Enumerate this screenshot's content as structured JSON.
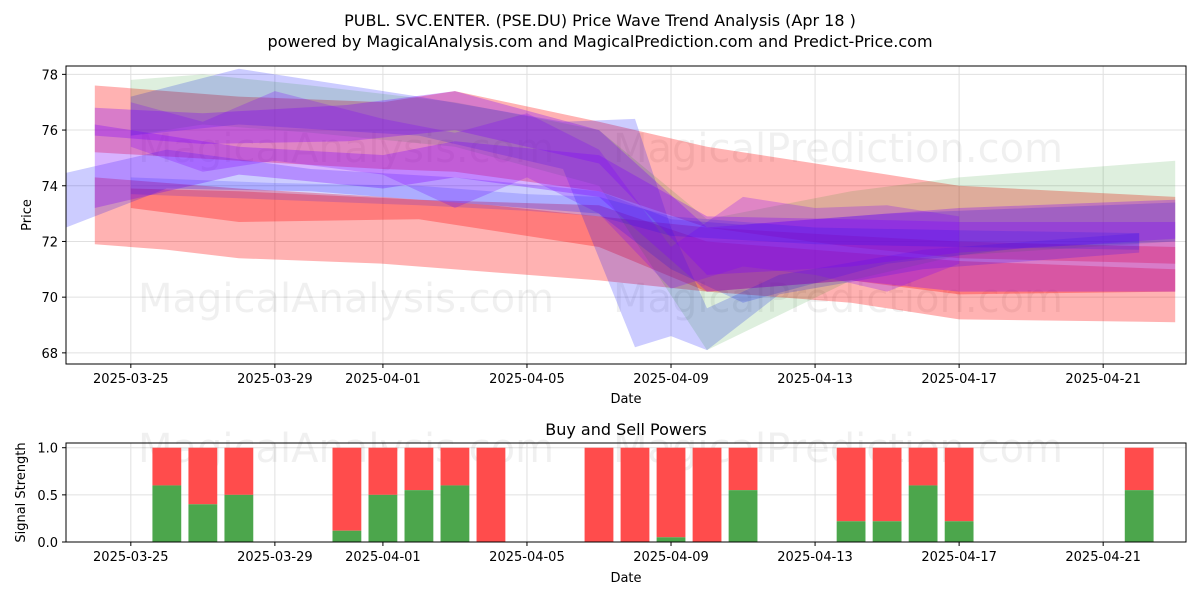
{
  "title_line1": "PUBL. SVC.ENTER. (PSE.DU) Price Wave Trend Analysis (Apr 18 )",
  "title_line2": "powered by MagicalAnalysis.com and MagicalPrediction.com and Predict-Price.com",
  "watermarks": [
    "MagicalAnalysis.com",
    "MagicalPrediction.com"
  ],
  "chart_data": [
    {
      "type": "area",
      "title": "",
      "xlabel": "Date",
      "ylabel": "Price",
      "ylim": [
        67.6,
        78.3
      ],
      "xlim": [
        "2025-03-23.2",
        "2025-04-23.3"
      ],
      "x_ticks": [
        "2025-03-25",
        "2025-03-29",
        "2025-04-01",
        "2025-04-05",
        "2025-04-09",
        "2025-04-13",
        "2025-04-17",
        "2025-04-21"
      ],
      "y_ticks": [
        68,
        70,
        72,
        74,
        76,
        78
      ],
      "grid": true,
      "series": [
        {
          "color": "#ff0000",
          "opacity": 0.3,
          "x": [
            "2025-03-24",
            "2025-03-26",
            "2025-03-28",
            "2025-04-01",
            "2025-04-04",
            "2025-04-07",
            "2025-04-10",
            "2025-04-14",
            "2025-04-17",
            "2025-04-23"
          ],
          "upper": [
            74.3,
            74.1,
            73.9,
            73.6,
            73.3,
            72.9,
            72.5,
            72.2,
            72.0,
            71.8
          ],
          "lower": [
            71.9,
            71.7,
            71.4,
            71.2,
            70.9,
            70.6,
            70.2,
            69.8,
            69.2,
            69.1
          ]
        },
        {
          "color": "#ff0000",
          "opacity": 0.3,
          "x": [
            "2025-03-24",
            "2025-03-28",
            "2025-04-01",
            "2025-04-03",
            "2025-04-07",
            "2025-04-10",
            "2025-04-14",
            "2025-04-17",
            "2025-04-23"
          ],
          "upper": [
            77.6,
            77.2,
            77.0,
            77.4,
            76.3,
            75.4,
            74.6,
            74.0,
            73.6
          ],
          "lower": [
            75.2,
            74.9,
            74.6,
            74.5,
            73.8,
            72.5,
            71.8,
            71.4,
            71.2
          ]
        },
        {
          "color": "#ff0000",
          "opacity": 0.3,
          "x": [
            "2025-03-25",
            "2025-03-28",
            "2025-04-02",
            "2025-04-07",
            "2025-04-10",
            "2025-04-14",
            "2025-04-17",
            "2025-04-23"
          ],
          "upper": [
            73.9,
            73.8,
            73.5,
            73.3,
            72.0,
            71.6,
            71.3,
            71.0
          ],
          "lower": [
            73.2,
            72.7,
            72.8,
            71.8,
            70.2,
            70.6,
            70.1,
            70.2
          ]
        },
        {
          "color": "#0000ff",
          "opacity": 0.2,
          "x": [
            "2025-03-23",
            "2025-03-26",
            "2025-03-30",
            "2025-04-03",
            "2025-04-07",
            "2025-04-09",
            "2025-04-11",
            "2025-04-15",
            "2025-04-19",
            "2025-04-23"
          ],
          "upper": [
            74.4,
            75.3,
            74.6,
            74.3,
            73.8,
            72.8,
            72.6,
            73.0,
            73.2,
            73.4
          ],
          "lower": [
            72.4,
            73.9,
            73.8,
            73.4,
            73.0,
            71.0,
            69.8,
            71.2,
            71.8,
            72.0
          ]
        },
        {
          "color": "#0000ff",
          "opacity": 0.2,
          "x": [
            "2025-03-25",
            "2025-03-28",
            "2025-04-02",
            "2025-04-06",
            "2025-04-08",
            "2025-04-09",
            "2025-04-10",
            "2025-04-12",
            "2025-04-16",
            "2025-04-22"
          ],
          "upper": [
            77.2,
            78.2,
            77.2,
            76.3,
            76.4,
            72.5,
            69.6,
            70.8,
            71.7,
            72.3
          ],
          "lower": [
            75.8,
            76.2,
            75.8,
            74.6,
            68.2,
            68.6,
            68.1,
            70.1,
            71.0,
            71.6
          ]
        },
        {
          "color": "#008000",
          "opacity": 0.13,
          "x": [
            "2025-03-25",
            "2025-03-27",
            "2025-03-30",
            "2025-04-03",
            "2025-04-07",
            "2025-04-10",
            "2025-04-14",
            "2025-04-17",
            "2025-04-23"
          ],
          "upper": [
            77.8,
            78.0,
            77.6,
            77.0,
            76.0,
            72.8,
            73.8,
            74.3,
            74.9
          ],
          "lower": [
            75.8,
            76.2,
            75.9,
            75.4,
            74.0,
            68.1,
            70.6,
            71.5,
            72.0
          ]
        },
        {
          "color": "#7f00ff",
          "opacity": 0.3,
          "x": [
            "2025-03-24",
            "2025-03-27",
            "2025-03-31",
            "2025-04-03",
            "2025-04-07",
            "2025-04-10",
            "2025-04-14",
            "2025-04-17",
            "2025-04-23"
          ],
          "upper": [
            76.8,
            76.6,
            76.9,
            77.4,
            76.0,
            72.5,
            72.9,
            73.2,
            73.5
          ],
          "lower": [
            75.8,
            75.5,
            75.6,
            76.0,
            74.8,
            70.8,
            71.1,
            71.6,
            72.1
          ]
        },
        {
          "color": "#7f00ff",
          "opacity": 0.3,
          "x": [
            "2025-03-24",
            "2025-03-28",
            "2025-04-01",
            "2025-04-03",
            "2025-04-07",
            "2025-04-10",
            "2025-04-14",
            "2025-04-17",
            "2025-04-23"
          ],
          "upper": [
            76.2,
            75.4,
            75.1,
            75.6,
            75.1,
            72.9,
            72.8,
            72.7,
            72.7
          ],
          "lower": [
            73.2,
            74.4,
            73.9,
            74.3,
            73.6,
            70.2,
            70.6,
            70.2,
            70.2
          ]
        },
        {
          "color": "#7f00ff",
          "opacity": 0.25,
          "x": [
            "2025-03-25",
            "2025-03-27",
            "2025-03-29",
            "2025-04-01",
            "2025-04-03",
            "2025-04-05",
            "2025-04-07",
            "2025-04-09",
            "2025-04-11",
            "2025-04-13",
            "2025-04-15",
            "2025-04-17"
          ],
          "upper": [
            77.0,
            76.3,
            77.4,
            76.4,
            75.9,
            76.6,
            75.3,
            71.8,
            73.6,
            73.2,
            73.3,
            72.9
          ],
          "lower": [
            75.4,
            74.5,
            74.9,
            74.4,
            73.2,
            74.3,
            73.0,
            70.3,
            71.1,
            70.8,
            70.2,
            71.2
          ]
        },
        {
          "color": "#0000ff",
          "opacity": 0.15,
          "x": [
            "2025-03-25",
            "2025-03-29",
            "2025-04-02",
            "2025-04-05",
            "2025-04-07",
            "2025-04-09",
            "2025-04-13",
            "2025-04-17",
            "2025-04-22"
          ],
          "upper": [
            74.3,
            74.1,
            74.0,
            73.7,
            73.6,
            72.9,
            72.5,
            72.4,
            72.3
          ],
          "lower": [
            73.7,
            73.5,
            73.3,
            73.1,
            72.9,
            72.2,
            71.9,
            71.8,
            71.7
          ]
        }
      ]
    },
    {
      "type": "bar",
      "title": "Buy and Sell Powers",
      "xlabel": "Date",
      "ylabel": "Signal Strength",
      "ylim": [
        0,
        1.05
      ],
      "xlim": [
        "2025-03-23.2",
        "2025-04-23.3"
      ],
      "x_ticks": [
        "2025-03-25",
        "2025-03-29",
        "2025-04-01",
        "2025-04-05",
        "2025-04-09",
        "2025-04-13",
        "2025-04-17",
        "2025-04-21"
      ],
      "y_ticks": [
        "0.0",
        "0.5",
        "1.0"
      ],
      "grid": true,
      "buy_color": "#4ca64c",
      "sell_color": "#ff4c4c",
      "days": [
        "2025-03-26",
        "2025-03-27",
        "2025-03-28",
        "2025-03-31",
        "2025-04-01",
        "2025-04-02",
        "2025-04-03",
        "2025-04-04",
        "2025-04-07",
        "2025-04-08",
        "2025-04-09",
        "2025-04-10",
        "2025-04-11",
        "2025-04-14",
        "2025-04-15",
        "2025-04-16",
        "2025-04-17",
        "2025-04-22"
      ],
      "buy": [
        0.6,
        0.4,
        0.5,
        0.12,
        0.5,
        0.55,
        0.6,
        0.0,
        0.0,
        0.0,
        0.05,
        0.0,
        0.55,
        0.22,
        0.22,
        0.6,
        0.22,
        0.55
      ],
      "total": [
        1.0,
        1.0,
        1.0,
        1.0,
        1.0,
        1.0,
        1.0,
        1.0,
        1.0,
        1.0,
        1.0,
        1.0,
        1.0,
        1.0,
        1.0,
        1.0,
        1.0,
        1.0
      ]
    }
  ]
}
